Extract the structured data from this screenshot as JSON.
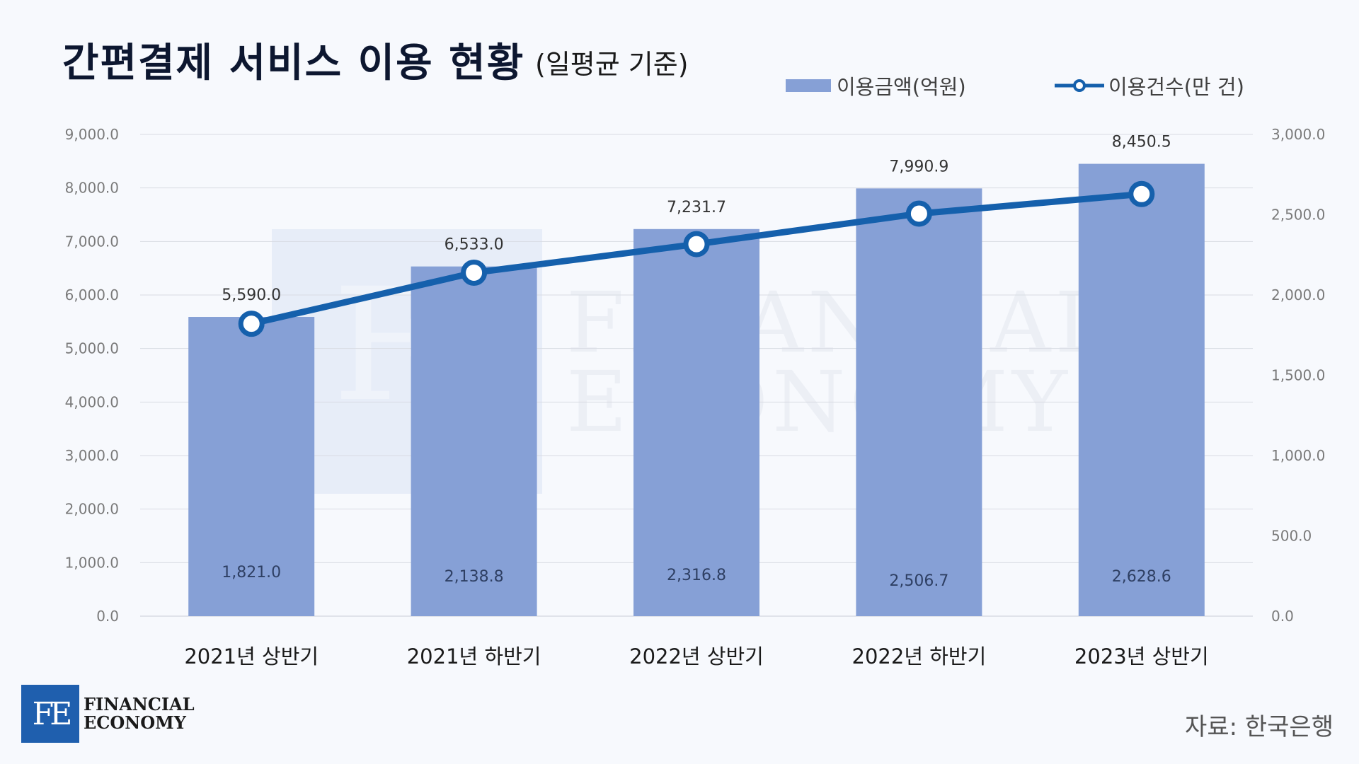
{
  "header": {
    "title": "간편결제 서비스 이용 현황",
    "subtitle": "(일평균 기준)"
  },
  "legend": {
    "bar_label": "이용금액(억원)",
    "line_label": "이용건수(만 건)"
  },
  "source": "자료: 한국은행",
  "logo": {
    "mark": "FE",
    "line1": "FINANCIAL",
    "line2": "ECONOMY"
  },
  "watermark": {
    "mark": "FE",
    "line1": "FINANCIAL",
    "line2": "ECONOMY"
  },
  "colors": {
    "bar": "#86a0d6",
    "line": "#1560ac",
    "grid": "#d9dce3",
    "axis_text": "#7a7a7a"
  },
  "chart_data": {
    "type": "bar",
    "categories": [
      "2021년 상반기",
      "2021년 하반기",
      "2022년 상반기",
      "2022년 하반기",
      "2023년 상반기"
    ],
    "series": [
      {
        "name": "이용금액(억원)",
        "type": "bar",
        "axis": "left",
        "values": [
          5590.0,
          6533.0,
          7231.7,
          7990.9,
          8450.5
        ],
        "labels": [
          "5,590.0",
          "6,533.0",
          "7,231.7",
          "7,990.9",
          "8,450.5"
        ]
      },
      {
        "name": "이용건수(만 건)",
        "type": "line",
        "axis": "right",
        "values": [
          1821.0,
          2138.8,
          2316.8,
          2506.7,
          2628.6
        ],
        "labels": [
          "1,821.0",
          "2,138.8",
          "2,316.8",
          "2,506.7",
          "2,628.6"
        ]
      }
    ],
    "y_left": {
      "min": 0,
      "max": 9000,
      "step": 1000,
      "ticks": [
        "0.0",
        "1,000.0",
        "2,000.0",
        "3,000.0",
        "4,000.0",
        "5,000.0",
        "6,000.0",
        "7,000.0",
        "8,000.0",
        "9,000.0"
      ]
    },
    "y_right": {
      "min": 0,
      "max": 3000,
      "step": 500,
      "ticks": [
        "0.0",
        "500.0",
        "1,000.0",
        "1,500.0",
        "2,000.0",
        "2,500.0",
        "3,000.0"
      ]
    },
    "grid": true,
    "legend_position": "top-right"
  }
}
